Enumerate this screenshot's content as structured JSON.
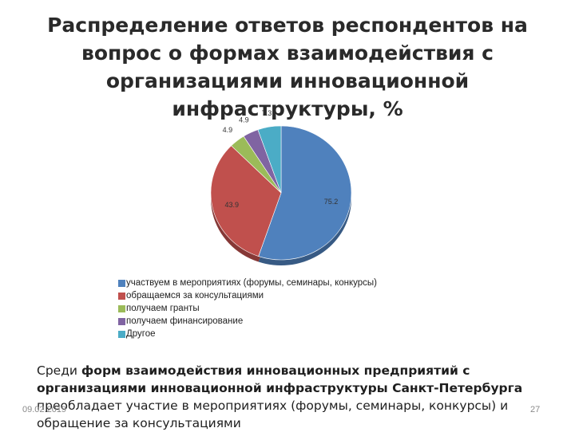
{
  "slide": {
    "title": "Распределение ответов респондентов на вопрос о формах взаимодействия с организациями инновационной инфраструктуры, %",
    "summary_bold_1": "форм взаимодействия инновационных предприятий с организациями инновационной инфраструктуры Санкт-Петербурга",
    "summary_pre": "Среди ",
    "summary_post": " преобладает участие в мероприятиях (форумы, семинары, конкурсы) и обращение за консультациями",
    "date": "09.02.2019",
    "page_number": "27"
  },
  "chart_data": {
    "type": "pie",
    "title": "",
    "legend_position": "bottom-left",
    "slices": [
      {
        "label": "участвуем в мероприятиях (форумы, семинары, конкурсы)",
        "value": 75.2,
        "value_label": "75.2",
        "color": "#4f81bd"
      },
      {
        "label": "обращаемся за консультациями",
        "value": 43.9,
        "value_label": "43.9",
        "color": "#c0504d"
      },
      {
        "label": "получаем гранты",
        "value": 4.9,
        "value_label": "4.9",
        "color": "#9bbb59"
      },
      {
        "label": "получаем финансирование",
        "value": 4.9,
        "value_label": "4.9",
        "color": "#8064a2"
      },
      {
        "label": "Другое",
        "value": 7.3,
        "value_label": "7.3",
        "color": "#4bacc6"
      }
    ]
  }
}
